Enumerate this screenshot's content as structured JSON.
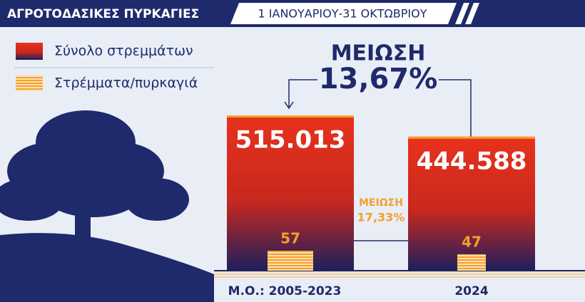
{
  "chart_data": {
    "type": "bar",
    "title": "ΑΓΡΟΤΟΔΑΣΙΚΕΣ ΠΥΡΚΑΓΙΕΣ",
    "subtitle": "1 ΙΑΝΟΥΑΡΙΟΥ-31 ΟΚΤΩΒΡΙΟΥ",
    "categories": [
      "Μ.Ο.: 2005-2023",
      "2024"
    ],
    "series": [
      {
        "name": "Σύνολο στρεμμάτων",
        "color": "#e8321c",
        "values": [
          515013,
          444588
        ],
        "value_labels": [
          "515.013",
          "444.588"
        ]
      },
      {
        "name": "Στρέμματα/πυρκαγιά",
        "color": "#f5a02a",
        "values": [
          57,
          47
        ]
      }
    ],
    "annotations": [
      {
        "text": "ΜΕΙΩΣΗ"
      },
      {
        "text": "13,67%"
      },
      {
        "text": "ΜΕΙΩΣΗ"
      },
      {
        "text": "17,33%"
      }
    ]
  }
}
